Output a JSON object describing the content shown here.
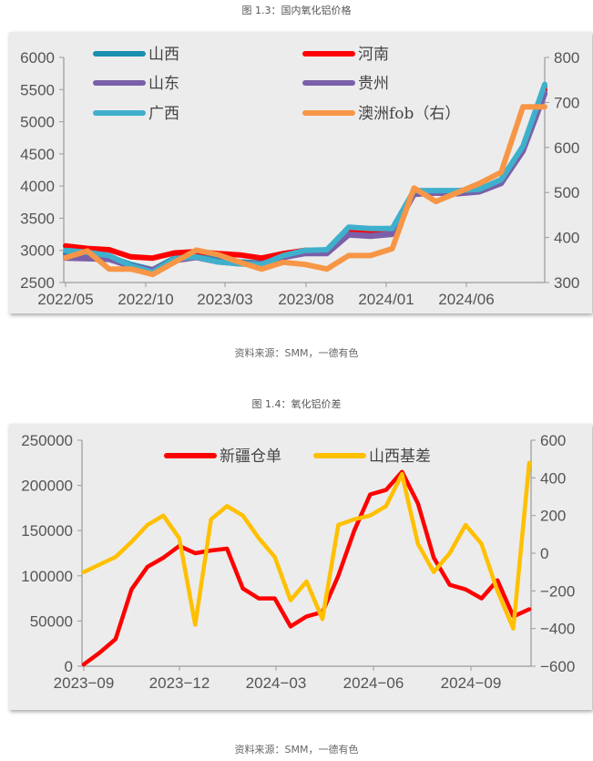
{
  "figure1": {
    "caption": "图 1.3：国内氧化铝价格",
    "source": "资料来源：SMM，一德有色"
  },
  "figure2": {
    "caption": "图 1.4：氧化铝价差",
    "source": "资料来源：SMM，一德有色"
  },
  "chart_data": [
    {
      "type": "line",
      "title": "图 1.3：国内氧化铝价格",
      "xlabel": "",
      "ylabel": "",
      "x_ticks": [
        "2022/05",
        "2022/10",
        "2023/03",
        "2023/08",
        "2024/01",
        "2024/06"
      ],
      "y_ticks": [
        2500,
        3000,
        3500,
        4000,
        4500,
        5000,
        5500,
        6000
      ],
      "y2_ticks": [
        300,
        400,
        500,
        600,
        700,
        800
      ],
      "ylim": [
        2500,
        6000
      ],
      "y2lim": [
        300,
        800
      ],
      "legend_position": "top-inside",
      "grid": false,
      "x": [
        "2022/05",
        "2022/07",
        "2022/09",
        "2022/10",
        "2022/11",
        "2022/12",
        "2023/01",
        "2023/03",
        "2023/05",
        "2023/07",
        "2023/08",
        "2023/10",
        "2023/12",
        "2024/01",
        "2024/02",
        "2024/04",
        "2024/05",
        "2024/06",
        "2024/07",
        "2024/08",
        "2024/09",
        "2024/10",
        "2024/11"
      ],
      "series": [
        {
          "name": "山西",
          "color": "#1a8fb0",
          "axis": "left",
          "values": [
            2950,
            2930,
            2900,
            2780,
            2700,
            2880,
            2920,
            2850,
            2820,
            2800,
            2920,
            2990,
            3000,
            3350,
            3330,
            3330,
            3900,
            3920,
            3920,
            3950,
            4100,
            4600,
            5550
          ]
        },
        {
          "name": "河南",
          "color": "#ff0000",
          "axis": "left",
          "values": [
            3070,
            3030,
            3010,
            2900,
            2880,
            2960,
            2980,
            2950,
            2930,
            2880,
            2950,
            3000,
            3000,
            3300,
            3280,
            3300,
            3900,
            3910,
            3900,
            3930,
            4100,
            4600,
            5500
          ]
        },
        {
          "name": "山东",
          "color": "#7b5fa8",
          "axis": "left",
          "values": [
            2900,
            2880,
            2870,
            2760,
            2700,
            2850,
            2900,
            2830,
            2800,
            2790,
            2900,
            2960,
            2960,
            3250,
            3230,
            3260,
            3880,
            3900,
            3890,
            3920,
            4050,
            4550,
            5450
          ]
        },
        {
          "name": "贵州",
          "color": "#7b5fa8",
          "axis": "left",
          "values": [
            2880,
            2870,
            2860,
            2750,
            2690,
            2840,
            2890,
            2820,
            2790,
            2780,
            2890,
            2950,
            2950,
            3240,
            3220,
            3250,
            3870,
            3890,
            3880,
            3910,
            4040,
            4540,
            5430
          ]
        },
        {
          "name": "广西",
          "color": "#3fb0cc",
          "axis": "left",
          "values": [
            3000,
            2970,
            2920,
            2760,
            2660,
            2870,
            2900,
            2820,
            2790,
            2780,
            2920,
            3000,
            3010,
            3360,
            3340,
            3340,
            3930,
            3930,
            3930,
            3950,
            4100,
            4620,
            5580
          ]
        },
        {
          "name": "澳洲fob（右）",
          "color": "#f79646",
          "axis": "right",
          "values": [
            355,
            370,
            330,
            330,
            318,
            345,
            372,
            362,
            345,
            330,
            345,
            340,
            330,
            360,
            360,
            375,
            510,
            480,
            500,
            520,
            545,
            690,
            690
          ]
        }
      ]
    },
    {
      "type": "line",
      "title": "图 1.4：氧化铝价差",
      "xlabel": "",
      "ylabel": "",
      "x_ticks": [
        "2023-09",
        "2023-12",
        "2024-03",
        "2024-06",
        "2024-09"
      ],
      "y_ticks": [
        0,
        50000,
        100000,
        150000,
        200000,
        250000
      ],
      "y2_ticks": [
        -600,
        -400,
        -200,
        0,
        200,
        400,
        600
      ],
      "ylim": [
        0,
        250000
      ],
      "y2lim": [
        -600,
        600
      ],
      "legend_position": "top-inside",
      "grid": false,
      "x": [
        "2023-09-01",
        "2023-09-15",
        "2023-10-01",
        "2023-10-15",
        "2023-11-01",
        "2023-11-15",
        "2023-12-01",
        "2023-12-15",
        "2024-01-01",
        "2024-01-15",
        "2024-02-01",
        "2024-02-15",
        "2024-03-01",
        "2024-03-15",
        "2024-04-01",
        "2024-04-15",
        "2024-05-01",
        "2024-05-15",
        "2024-06-01",
        "2024-06-15",
        "2024-07-01",
        "2024-07-15",
        "2024-08-01",
        "2024-08-15",
        "2024-09-01",
        "2024-09-15",
        "2024-10-01",
        "2024-10-15",
        "2024-11-01"
      ],
      "series": [
        {
          "name": "新疆仓单",
          "color": "#ff0000",
          "axis": "left",
          "values": [
            2000,
            15000,
            30000,
            85000,
            110000,
            120000,
            133000,
            125000,
            128000,
            130000,
            86000,
            75000,
            75000,
            44000,
            55000,
            60000,
            100000,
            150000,
            190000,
            195000,
            215000,
            180000,
            120000,
            90000,
            85000,
            75000,
            95000,
            55000,
            63000
          ]
        },
        {
          "name": "山西基差",
          "color": "#ffc000",
          "axis": "right",
          "values": [
            -100,
            -60,
            -20,
            60,
            150,
            200,
            80,
            -380,
            180,
            250,
            200,
            80,
            -20,
            -250,
            -150,
            -350,
            150,
            180,
            200,
            250,
            420,
            50,
            -100,
            0,
            150,
            50,
            -200,
            -400,
            480
          ]
        }
      ]
    }
  ]
}
